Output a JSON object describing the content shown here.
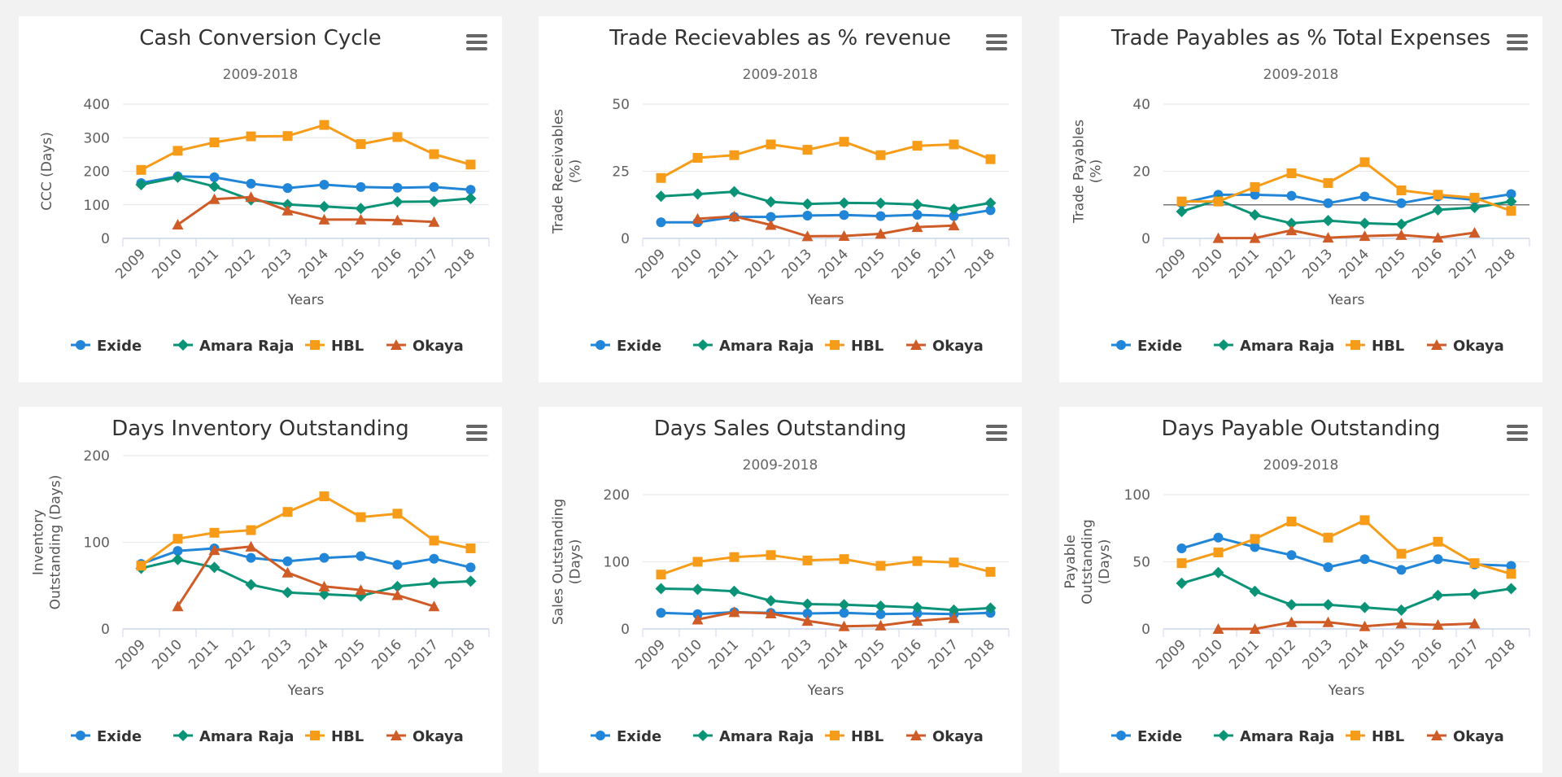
{
  "categories": [
    "2009",
    "2010",
    "2011",
    "2012",
    "2013",
    "2014",
    "2015",
    "2016",
    "2017",
    "2018"
  ],
  "x_axis_title": "Years",
  "series_colors": {
    "Exide": "#2185d8",
    "Amara Raja": "#0b9378",
    "HBL": "#f69c18",
    "Okaya": "#cf5c27"
  },
  "legend": [
    {
      "name": "Exide",
      "marker": "circle"
    },
    {
      "name": "Amara Raja",
      "marker": "diamond"
    },
    {
      "name": "HBL",
      "marker": "square"
    },
    {
      "name": "Okaya",
      "marker": "triangle"
    }
  ],
  "chart_data": [
    {
      "type": "line",
      "title": "Cash Conversion Cycle",
      "subtitle": "2009-2018",
      "xlabel": "Years",
      "ylabel": "CCC (Days)",
      "ylim": [
        0,
        400
      ],
      "yticks": [
        0,
        100,
        200,
        300,
        400
      ],
      "series": [
        {
          "name": "Exide",
          "values": [
            165,
            185,
            182,
            163,
            150,
            160,
            153,
            151,
            153,
            145
          ]
        },
        {
          "name": "Amara Raja",
          "values": [
            160,
            182,
            155,
            115,
            101,
            95,
            89,
            109,
            110,
            119
          ]
        },
        {
          "name": "HBL",
          "values": [
            204,
            261,
            286,
            304,
            305,
            338,
            281,
            302,
            251,
            220
          ]
        },
        {
          "name": "Okaya",
          "values": [
            null,
            41,
            117,
            123,
            83,
            56,
            56,
            54,
            49,
            null
          ]
        }
      ]
    },
    {
      "type": "line",
      "title": "Trade Recievables as % revenue",
      "subtitle": "2009-2018",
      "xlabel": "Years",
      "ylabel": "Trade Receivables (%)",
      "ylim": [
        0,
        50
      ],
      "yticks": [
        0,
        25,
        50
      ],
      "series": [
        {
          "name": "Exide",
          "values": [
            6,
            6,
            8,
            8,
            8.5,
            8.7,
            8.3,
            8.8,
            8.3,
            10.5
          ]
        },
        {
          "name": "Amara Raja",
          "values": [
            15.7,
            16.5,
            17.4,
            13.6,
            12.8,
            13.2,
            13.1,
            12.6,
            10.9,
            13.2
          ]
        },
        {
          "name": "HBL",
          "values": [
            22.5,
            30,
            31,
            35,
            33,
            36,
            31,
            34.5,
            35,
            29.5
          ]
        },
        {
          "name": "Okaya",
          "values": [
            null,
            7.3,
            8.2,
            5,
            0.8,
            0.9,
            1.7,
            4.2,
            4.8,
            null
          ]
        }
      ]
    },
    {
      "type": "line",
      "title": "Trade Payables as % Total Expenses",
      "subtitle": "2009-2018",
      "xlabel": "Years",
      "ylabel": "Trade Payables (%)",
      "ylim": [
        0,
        40
      ],
      "yticks": [
        0,
        20,
        40
      ],
      "reference_line": 10,
      "series": [
        {
          "name": "Exide",
          "values": [
            10.5,
            13,
            13,
            12.7,
            10.5,
            12.5,
            10.5,
            12.5,
            11.5,
            13.2
          ]
        },
        {
          "name": "Amara Raja",
          "values": [
            8,
            11.5,
            7,
            4.5,
            5.3,
            4.5,
            4.2,
            8.5,
            9.2,
            11
          ]
        },
        {
          "name": "HBL",
          "values": [
            11,
            11,
            15.3,
            19.4,
            16.5,
            22.7,
            14.3,
            13,
            12.1,
            8.2
          ]
        },
        {
          "name": "Okaya",
          "values": [
            null,
            0.1,
            0.1,
            2.4,
            0.2,
            0.7,
            1,
            0.2,
            1.7,
            null
          ]
        }
      ]
    },
    {
      "type": "line",
      "title": "Days Inventory Outstanding",
      "subtitle": "",
      "xlabel": "Years",
      "ylabel": "Inventory Outstanding (Days)",
      "ylim": [
        0,
        200
      ],
      "yticks": [
        0,
        100,
        200
      ],
      "series": [
        {
          "name": "Exide",
          "values": [
            75,
            90,
            93,
            82,
            78,
            82,
            84,
            74,
            81,
            71
          ]
        },
        {
          "name": "Amara Raja",
          "values": [
            70,
            80,
            71,
            51,
            42,
            40,
            38,
            49,
            53,
            55
          ]
        },
        {
          "name": "HBL",
          "values": [
            73,
            104,
            111,
            114,
            135,
            153,
            129,
            133,
            102,
            93
          ]
        },
        {
          "name": "Okaya",
          "values": [
            null,
            26,
            91,
            95,
            65,
            49,
            45,
            39,
            26,
            null
          ]
        }
      ]
    },
    {
      "type": "line",
      "title": "Days Sales Outstanding",
      "subtitle": "2009-2018",
      "xlabel": "Years",
      "ylabel": "Sales Outstanding (Days)",
      "ylim": [
        0,
        200
      ],
      "yticks": [
        0,
        100,
        200
      ],
      "series": [
        {
          "name": "Exide",
          "values": [
            24,
            22,
            25,
            24,
            23,
            24,
            22,
            23,
            22,
            24
          ]
        },
        {
          "name": "Amara Raja",
          "values": [
            60,
            59,
            56,
            42,
            37,
            36,
            34,
            32,
            28,
            31
          ]
        },
        {
          "name": "HBL",
          "values": [
            81,
            100,
            107,
            110,
            102,
            104,
            94,
            101,
            99,
            85
          ]
        },
        {
          "name": "Okaya",
          "values": [
            null,
            14,
            25,
            23,
            12,
            4,
            5,
            12,
            16,
            null
          ]
        }
      ]
    },
    {
      "type": "line",
      "title": "Days Payable Outstanding",
      "subtitle": "2009-2018",
      "xlabel": "Years",
      "ylabel": "Payable Outstanding (Days)",
      "ylim": [
        0,
        100
      ],
      "yticks": [
        0,
        50,
        100
      ],
      "series": [
        {
          "name": "Exide",
          "values": [
            60,
            68,
            61,
            55,
            46,
            52,
            44,
            52,
            48,
            47
          ]
        },
        {
          "name": "Amara Raja",
          "values": [
            34,
            42,
            28,
            18,
            18,
            16,
            14,
            25,
            26,
            30
          ]
        },
        {
          "name": "HBL",
          "values": [
            49,
            57,
            67,
            80,
            68,
            81,
            56,
            65,
            49,
            41
          ]
        },
        {
          "name": "Okaya",
          "values": [
            null,
            0,
            0,
            5,
            5,
            2,
            4,
            3,
            4,
            null
          ]
        }
      ]
    }
  ]
}
